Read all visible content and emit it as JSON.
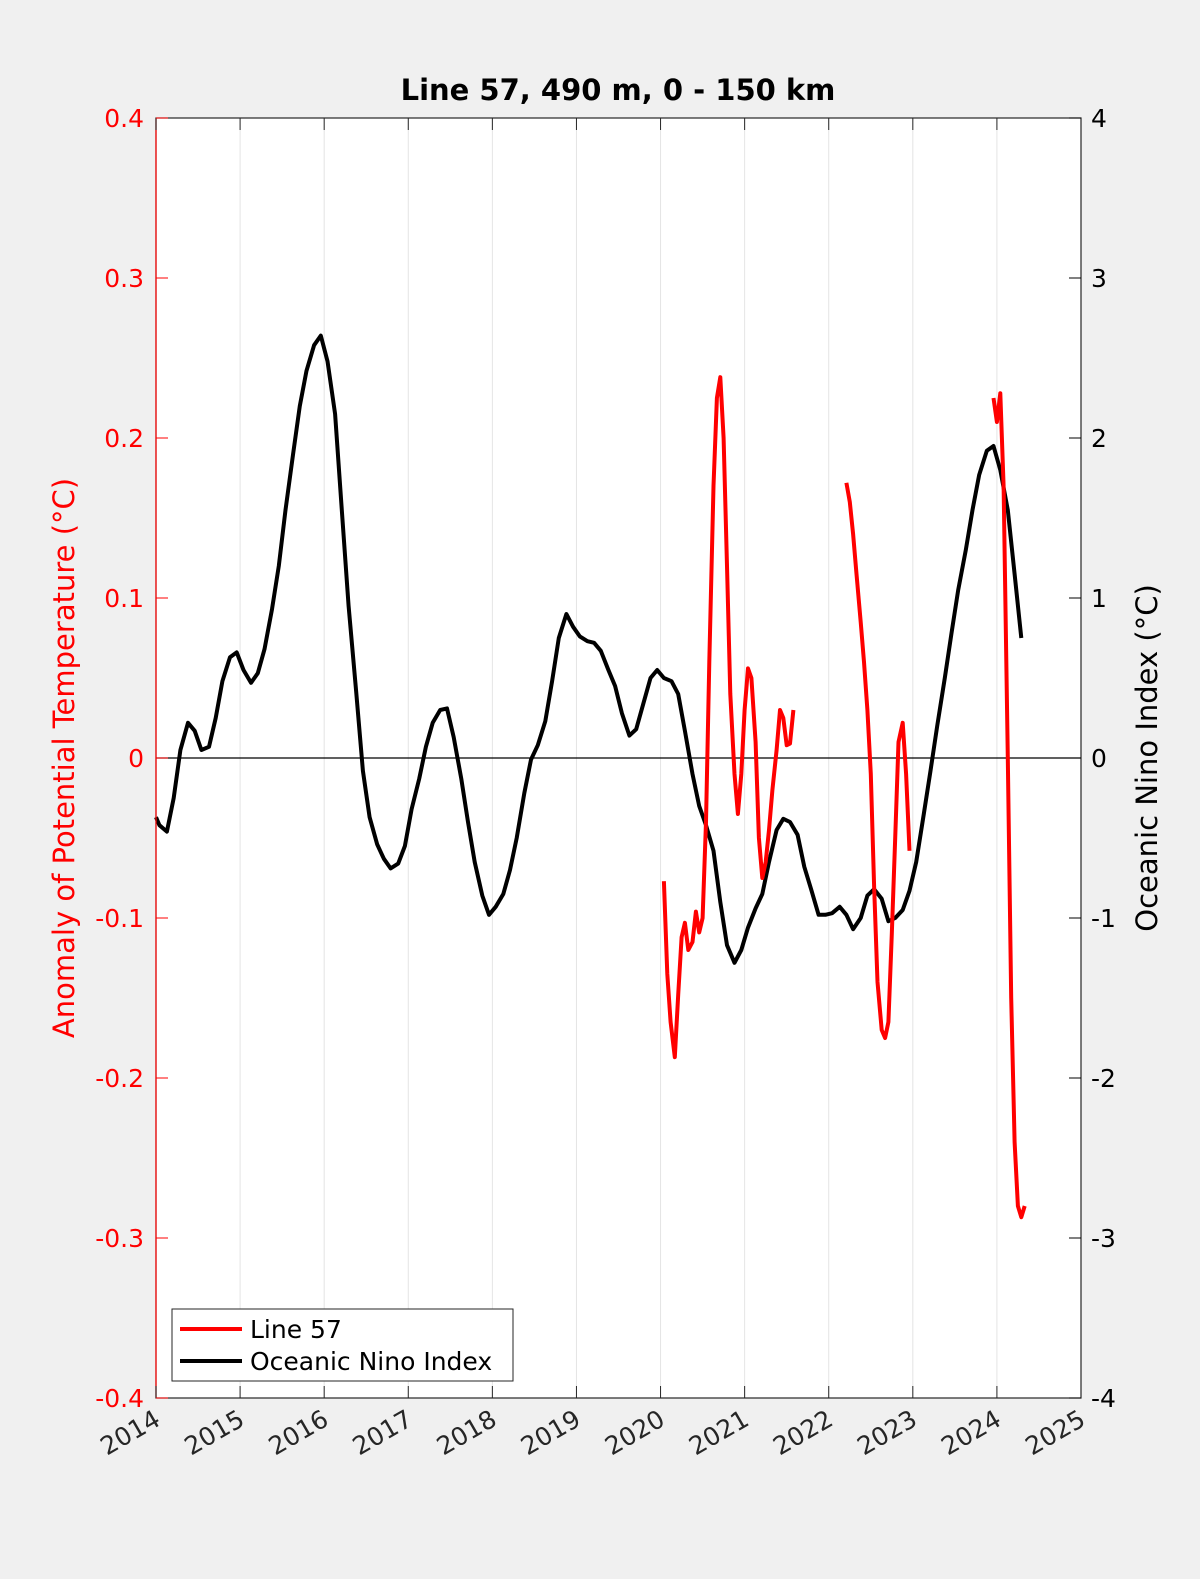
{
  "chart_data": {
    "type": "line",
    "title": "Line 57, 490 m, 0 - 150 km",
    "xlabel": "",
    "ylabel_left": "Anomaly of Potential Temperature (°C)",
    "ylabel_right": "Oceanic Nino Index (°C)",
    "xlim": [
      2014,
      2025
    ],
    "ylim_left": [
      -0.4,
      0.4
    ],
    "ylim_right": [
      -4,
      4
    ],
    "x_ticks": [
      "2014",
      "2015",
      "2016",
      "2017",
      "2018",
      "2019",
      "2020",
      "2021",
      "2022",
      "2023",
      "2024",
      "2025"
    ],
    "y_ticks_left": [
      "-0.4",
      "-0.3",
      "-0.2",
      "-0.1",
      "0",
      "0.1",
      "0.2",
      "0.3",
      "0.4"
    ],
    "y_ticks_right": [
      "-4",
      "-3",
      "-2",
      "-1",
      "0",
      "1",
      "2",
      "3",
      "4"
    ],
    "grid": "vertical",
    "legend_position": "bottom-left",
    "colors": {
      "line57": "#ff0000",
      "oni": "#000000",
      "left_axis": "#ff0000",
      "right_axis": "#000000"
    },
    "series": [
      {
        "name": "Line 57",
        "axis": "left",
        "segments": [
          [
            [
              2020.04,
              -0.077
            ],
            [
              2020.08,
              -0.135
            ],
            [
              2020.12,
              -0.165
            ],
            [
              2020.17,
              -0.187
            ],
            [
              2020.21,
              -0.148
            ],
            [
              2020.25,
              -0.112
            ],
            [
              2020.29,
              -0.103
            ],
            [
              2020.33,
              -0.12
            ],
            [
              2020.38,
              -0.115
            ],
            [
              2020.42,
              -0.096
            ],
            [
              2020.46,
              -0.109
            ],
            [
              2020.5,
              -0.1
            ],
            [
              2020.54,
              -0.04
            ],
            [
              2020.58,
              0.06
            ],
            [
              2020.63,
              0.17
            ],
            [
              2020.67,
              0.225
            ],
            [
              2020.71,
              0.238
            ],
            [
              2020.75,
              0.2
            ],
            [
              2020.79,
              0.12
            ],
            [
              2020.83,
              0.04
            ],
            [
              2020.88,
              -0.01
            ],
            [
              2020.92,
              -0.035
            ],
            [
              2020.96,
              -0.01
            ],
            [
              2021.0,
              0.03
            ],
            [
              2021.04,
              0.056
            ],
            [
              2021.08,
              0.05
            ],
            [
              2021.13,
              0.01
            ],
            [
              2021.17,
              -0.05
            ],
            [
              2021.21,
              -0.075
            ],
            [
              2021.25,
              -0.065
            ],
            [
              2021.29,
              -0.045
            ],
            [
              2021.33,
              -0.02
            ],
            [
              2021.38,
              0.005
            ],
            [
              2021.42,
              0.03
            ],
            [
              2021.46,
              0.025
            ],
            [
              2021.5,
              0.008
            ],
            [
              2021.54,
              0.009
            ],
            [
              2021.58,
              0.03
            ]
          ],
          [
            [
              2022.21,
              0.172
            ],
            [
              2022.25,
              0.16
            ],
            [
              2022.29,
              0.14
            ],
            [
              2022.33,
              0.115
            ],
            [
              2022.38,
              0.085
            ],
            [
              2022.42,
              0.06
            ],
            [
              2022.46,
              0.03
            ],
            [
              2022.5,
              -0.01
            ],
            [
              2022.54,
              -0.08
            ],
            [
              2022.58,
              -0.14
            ],
            [
              2022.63,
              -0.17
            ],
            [
              2022.67,
              -0.175
            ],
            [
              2022.71,
              -0.165
            ],
            [
              2022.75,
              -0.11
            ],
            [
              2022.79,
              -0.05
            ],
            [
              2022.83,
              0.01
            ],
            [
              2022.88,
              0.022
            ],
            [
              2022.92,
              -0.01
            ],
            [
              2022.96,
              -0.058
            ]
          ],
          [
            [
              2023.96,
              0.225
            ],
            [
              2024.0,
              0.21
            ],
            [
              2024.04,
              0.228
            ],
            [
              2024.08,
              0.17
            ],
            [
              2024.13,
              0.0
            ],
            [
              2024.17,
              -0.15
            ],
            [
              2024.21,
              -0.24
            ],
            [
              2024.25,
              -0.28
            ],
            [
              2024.29,
              -0.287
            ],
            [
              2024.33,
              -0.28
            ]
          ]
        ]
      },
      {
        "name": "Oceanic Nino Index",
        "axis": "right",
        "points": [
          [
            2014.0,
            -0.37
          ],
          [
            2014.04,
            -0.42
          ],
          [
            2014.13,
            -0.46
          ],
          [
            2014.21,
            -0.25
          ],
          [
            2014.29,
            0.05
          ],
          [
            2014.38,
            0.22
          ],
          [
            2014.46,
            0.17
          ],
          [
            2014.54,
            0.05
          ],
          [
            2014.63,
            0.07
          ],
          [
            2014.71,
            0.25
          ],
          [
            2014.79,
            0.48
          ],
          [
            2014.88,
            0.63
          ],
          [
            2014.96,
            0.66
          ],
          [
            2015.04,
            0.55
          ],
          [
            2015.13,
            0.47
          ],
          [
            2015.21,
            0.53
          ],
          [
            2015.29,
            0.68
          ],
          [
            2015.38,
            0.93
          ],
          [
            2015.46,
            1.2
          ],
          [
            2015.54,
            1.55
          ],
          [
            2015.63,
            1.9
          ],
          [
            2015.71,
            2.2
          ],
          [
            2015.79,
            2.42
          ],
          [
            2015.88,
            2.58
          ],
          [
            2015.96,
            2.64
          ],
          [
            2016.04,
            2.48
          ],
          [
            2016.13,
            2.15
          ],
          [
            2016.21,
            1.55
          ],
          [
            2016.29,
            0.95
          ],
          [
            2016.38,
            0.42
          ],
          [
            2016.46,
            -0.08
          ],
          [
            2016.54,
            -0.37
          ],
          [
            2016.63,
            -0.54
          ],
          [
            2016.71,
            -0.63
          ],
          [
            2016.79,
            -0.69
          ],
          [
            2016.88,
            -0.66
          ],
          [
            2016.96,
            -0.55
          ],
          [
            2017.04,
            -0.32
          ],
          [
            2017.13,
            -0.13
          ],
          [
            2017.21,
            0.07
          ],
          [
            2017.29,
            0.22
          ],
          [
            2017.38,
            0.3
          ],
          [
            2017.46,
            0.31
          ],
          [
            2017.54,
            0.13
          ],
          [
            2017.63,
            -0.13
          ],
          [
            2017.71,
            -0.4
          ],
          [
            2017.79,
            -0.65
          ],
          [
            2017.88,
            -0.86
          ],
          [
            2017.96,
            -0.98
          ],
          [
            2018.04,
            -0.93
          ],
          [
            2018.13,
            -0.85
          ],
          [
            2018.21,
            -0.7
          ],
          [
            2018.29,
            -0.5
          ],
          [
            2018.38,
            -0.22
          ],
          [
            2018.46,
            -0.01
          ],
          [
            2018.54,
            0.08
          ],
          [
            2018.63,
            0.23
          ],
          [
            2018.71,
            0.48
          ],
          [
            2018.79,
            0.75
          ],
          [
            2018.88,
            0.9
          ],
          [
            2018.96,
            0.82
          ],
          [
            2019.04,
            0.76
          ],
          [
            2019.13,
            0.73
          ],
          [
            2019.21,
            0.72
          ],
          [
            2019.29,
            0.67
          ],
          [
            2019.38,
            0.55
          ],
          [
            2019.46,
            0.45
          ],
          [
            2019.54,
            0.28
          ],
          [
            2019.63,
            0.14
          ],
          [
            2019.71,
            0.18
          ],
          [
            2019.79,
            0.33
          ],
          [
            2019.88,
            0.5
          ],
          [
            2019.96,
            0.55
          ],
          [
            2020.04,
            0.5
          ],
          [
            2020.13,
            0.48
          ],
          [
            2020.21,
            0.4
          ],
          [
            2020.29,
            0.17
          ],
          [
            2020.38,
            -0.1
          ],
          [
            2020.46,
            -0.3
          ],
          [
            2020.54,
            -0.42
          ],
          [
            2020.63,
            -0.58
          ],
          [
            2020.71,
            -0.9
          ],
          [
            2020.79,
            -1.17
          ],
          [
            2020.88,
            -1.28
          ],
          [
            2020.96,
            -1.2
          ],
          [
            2021.04,
            -1.06
          ],
          [
            2021.13,
            -0.94
          ],
          [
            2021.21,
            -0.85
          ],
          [
            2021.29,
            -0.65
          ],
          [
            2021.38,
            -0.45
          ],
          [
            2021.46,
            -0.38
          ],
          [
            2021.54,
            -0.4
          ],
          [
            2021.63,
            -0.48
          ],
          [
            2021.71,
            -0.68
          ],
          [
            2021.79,
            -0.82
          ],
          [
            2021.88,
            -0.98
          ],
          [
            2021.96,
            -0.98
          ],
          [
            2022.04,
            -0.97
          ],
          [
            2022.13,
            -0.93
          ],
          [
            2022.21,
            -0.98
          ],
          [
            2022.29,
            -1.07
          ],
          [
            2022.38,
            -1.0
          ],
          [
            2022.46,
            -0.86
          ],
          [
            2022.54,
            -0.82
          ],
          [
            2022.63,
            -0.88
          ],
          [
            2022.71,
            -1.02
          ],
          [
            2022.79,
            -1.0
          ],
          [
            2022.88,
            -0.95
          ],
          [
            2022.96,
            -0.83
          ],
          [
            2023.04,
            -0.65
          ],
          [
            2023.13,
            -0.35
          ],
          [
            2023.21,
            -0.08
          ],
          [
            2023.29,
            0.2
          ],
          [
            2023.38,
            0.5
          ],
          [
            2023.46,
            0.78
          ],
          [
            2023.54,
            1.05
          ],
          [
            2023.63,
            1.3
          ],
          [
            2023.71,
            1.55
          ],
          [
            2023.79,
            1.77
          ],
          [
            2023.88,
            1.92
          ],
          [
            2023.96,
            1.95
          ],
          [
            2024.04,
            1.8
          ],
          [
            2024.13,
            1.55
          ],
          [
            2024.21,
            1.15
          ],
          [
            2024.29,
            0.75
          ]
        ]
      }
    ]
  }
}
